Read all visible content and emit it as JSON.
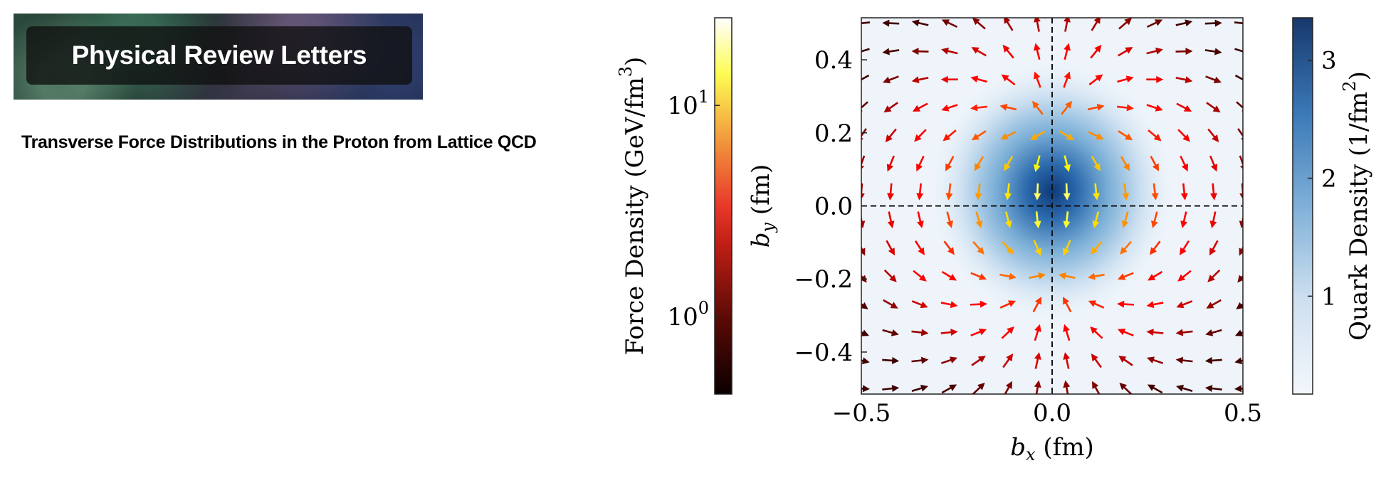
{
  "journal": {
    "name": "Physical Review Letters"
  },
  "article": {
    "title": "Transverse Force Distributions in the Proton from Lattice QCD"
  },
  "chart_data": {
    "type": "quiver-heatmap",
    "xlabel": "b_x (fm)",
    "xlabel_main": "b",
    "xlabel_sub": "x",
    "xlabel_unit": " (fm)",
    "ylabel_main": "b",
    "ylabel_sub": "y",
    "ylabel_unit": " (fm)",
    "xlim": [
      -0.5,
      0.5
    ],
    "ylim": [
      -0.515,
      0.515
    ],
    "xticks": [
      "−0.5",
      "0.0",
      "0.5"
    ],
    "xtick_values": [
      -0.5,
      0.0,
      0.5
    ],
    "yticks": [
      "−0.4",
      "−0.2",
      "0.0",
      "0.2",
      "0.4"
    ],
    "ytick_values": [
      -0.4,
      -0.2,
      0.0,
      0.2,
      0.4
    ],
    "reference_lines": {
      "x": 0.0,
      "y": 0.0,
      "style": "dashed"
    },
    "heatmap": {
      "quantity": "quark density",
      "peak_location": [
        0.0,
        0.04
      ],
      "colormap": "Blues"
    },
    "quiver": {
      "grid_x_range": [
        -0.5,
        0.5
      ],
      "grid_y_range": [
        -0.5,
        0.5
      ],
      "grid_points_per_axis": 14,
      "colormap": "hot",
      "pattern": "outward above b_y≈0.2, downward between b_y≈0.2 and −0.17, converging toward (0, −0.17) below"
    },
    "colorbars": [
      {
        "label": "Force Density (GeV/fm³)",
        "label_text": "Force Density (GeV/fm",
        "label_sup": "3",
        "label_close": ")",
        "scale": "log",
        "range": [
          0.43,
          26
        ],
        "ticks": [
          {
            "base": "10",
            "exp": "1",
            "value": 10
          },
          {
            "base": "10",
            "exp": "0",
            "value": 1
          }
        ],
        "colormap": "hot",
        "position": "left"
      },
      {
        "label": "Quark Density (1/fm²)",
        "label_text": "Quark Density (1/fm",
        "label_sup": "2",
        "label_close": ")",
        "scale": "linear",
        "range": [
          0.17,
          3.36
        ],
        "ticks": [
          "1",
          "2",
          "3"
        ],
        "tick_values": [
          1,
          2,
          3
        ],
        "colormap": "Blues",
        "position": "right"
      }
    ]
  }
}
